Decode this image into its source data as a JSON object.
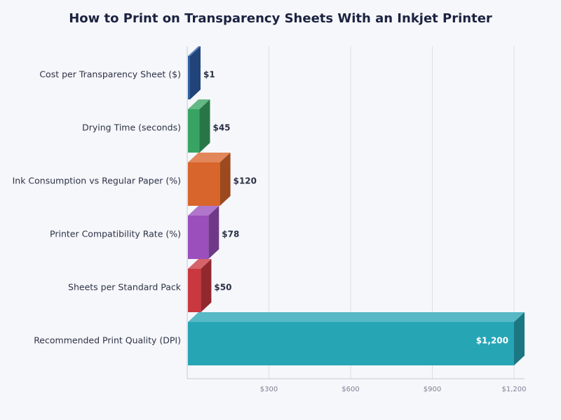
{
  "chart_data": {
    "type": "bar",
    "orientation": "horizontal",
    "title": "How to Print on Transparency Sheets With an Inkjet Printer",
    "categories": [
      "Cost per Transparency Sheet ($)",
      "Drying Time (seconds)",
      "Ink Consumption vs Regular Paper (%)",
      "Printer Compatibility Rate (%)",
      "Sheets per Standard Pack",
      "Recommended Print Quality (DPI)"
    ],
    "values": [
      1,
      45,
      120,
      78,
      50,
      1200
    ],
    "data_labels": [
      "$1",
      "$45",
      "$120",
      "$78",
      "$50",
      "$1,200"
    ],
    "colors": [
      "#2c5fa8",
      "#37a463",
      "#d8652b",
      "#9a4fbc",
      "#c9373f",
      "#26a5b5"
    ],
    "xlim": [
      0,
      1200
    ],
    "x_ticks": [
      300,
      600,
      900,
      1200
    ],
    "x_tick_labels": [
      "$300",
      "$600",
      "$900",
      "$1,200"
    ],
    "grid": true,
    "xlabel": "",
    "ylabel": ""
  }
}
